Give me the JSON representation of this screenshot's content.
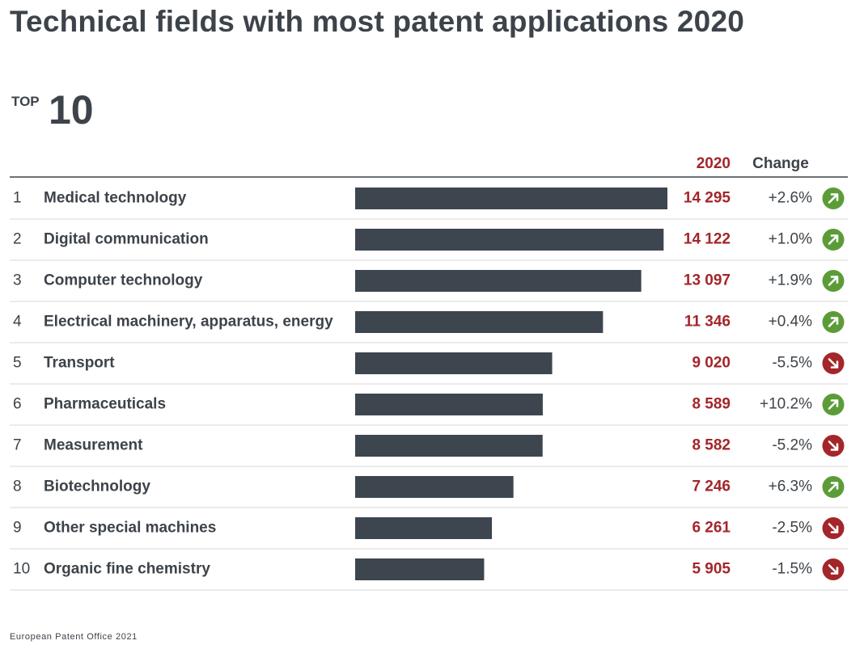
{
  "title": "Technical fields with most patent applications 2020",
  "badge": {
    "small": "TOP",
    "big": "10"
  },
  "footer": "European Patent Office 2021",
  "colors": {
    "bar": "#3d464e",
    "value": "#a3262a",
    "up": "#5c9c38",
    "down": "#a3262a",
    "rule": "#d7d7d7",
    "text": "#3d434a"
  },
  "chart_data": {
    "type": "bar",
    "orientation": "horizontal",
    "column_headers": {
      "value": "2020",
      "change": "Change"
    },
    "rows": [
      {
        "rank": "1",
        "field": "Medical technology",
        "value": 14295,
        "value_label": "14 295",
        "change": "+2.6%",
        "direction": "up"
      },
      {
        "rank": "2",
        "field": "Digital communication",
        "value": 14122,
        "value_label": "14 122",
        "change": "+1.0%",
        "direction": "up"
      },
      {
        "rank": "3",
        "field": "Computer technology",
        "value": 13097,
        "value_label": "13 097",
        "change": "+1.9%",
        "direction": "up"
      },
      {
        "rank": "4",
        "field": "Electrical machinery, apparatus, energy",
        "value": 11346,
        "value_label": "11 346",
        "change": "+0.4%",
        "direction": "up"
      },
      {
        "rank": "5",
        "field": "Transport",
        "value": 9020,
        "value_label": "9 020",
        "change": "-5.5%",
        "direction": "down"
      },
      {
        "rank": "6",
        "field": "Pharmaceuticals",
        "value": 8589,
        "value_label": "8 589",
        "change": "+10.2%",
        "direction": "up"
      },
      {
        "rank": "7",
        "field": "Measurement",
        "value": 8582,
        "value_label": "8 582",
        "change": "-5.2%",
        "direction": "down"
      },
      {
        "rank": "8",
        "field": "Biotechnology",
        "value": 7246,
        "value_label": "7 246",
        "change": "+6.3%",
        "direction": "up"
      },
      {
        "rank": "9",
        "field": "Other special machines",
        "value": 6261,
        "value_label": "6 261",
        "change": "-2.5%",
        "direction": "down"
      },
      {
        "rank": "10",
        "field": "Organic fine chemistry",
        "value": 5905,
        "value_label": "5 905",
        "change": "-1.5%",
        "direction": "down"
      }
    ],
    "xlim": [
      0,
      14295
    ]
  }
}
